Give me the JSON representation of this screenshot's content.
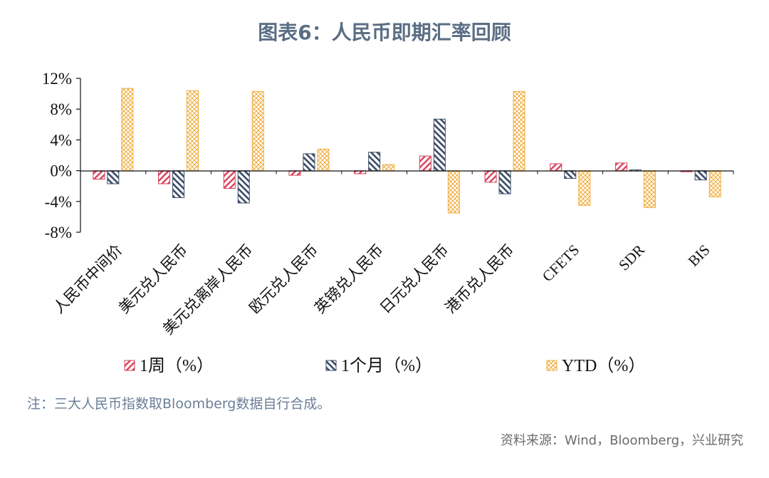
{
  "title": "图表6：人民币即期汇率回顾",
  "note": "注：三大人民币指数取Bloomberg数据自行合成。",
  "source": "资料来源：Wind，Bloomberg，兴业研究",
  "chart_data": {
    "type": "bar",
    "title": "图表6：人民币即期汇率回顾",
    "categories": [
      "人民币中间价",
      "美元兑人民币",
      "美元兑离岸人民币",
      "欧元兑人民币",
      "英镑兑人民币",
      "日元兑人民币",
      "港币兑人民币",
      "CFETS",
      "SDR",
      "BIS"
    ],
    "series": [
      {
        "name": "1周（%）",
        "color": "#d9405a",
        "pattern": "diagonal-red",
        "values": [
          -1.1,
          -1.7,
          -2.3,
          -0.6,
          -0.4,
          1.9,
          -1.5,
          0.9,
          1.0,
          -0.1
        ]
      },
      {
        "name": "1个月（%）",
        "color": "#3a4a66",
        "pattern": "diagonal-navy",
        "values": [
          -1.7,
          -3.5,
          -4.2,
          2.2,
          2.4,
          6.7,
          -3.0,
          -1.0,
          0.1,
          -1.2
        ]
      },
      {
        "name": "YTD（%）",
        "color": "#f0ad3e",
        "pattern": "crosshatch-orange",
        "values": [
          10.7,
          10.4,
          10.3,
          2.8,
          0.8,
          -5.5,
          10.3,
          -4.5,
          -4.8,
          -3.4
        ]
      }
    ],
    "yticks": [
      "12%",
      "8%",
      "4%",
      "0%",
      "-4%",
      "-8%"
    ],
    "ylim": [
      -8,
      12
    ],
    "grid": false,
    "legend_position": "bottom"
  }
}
